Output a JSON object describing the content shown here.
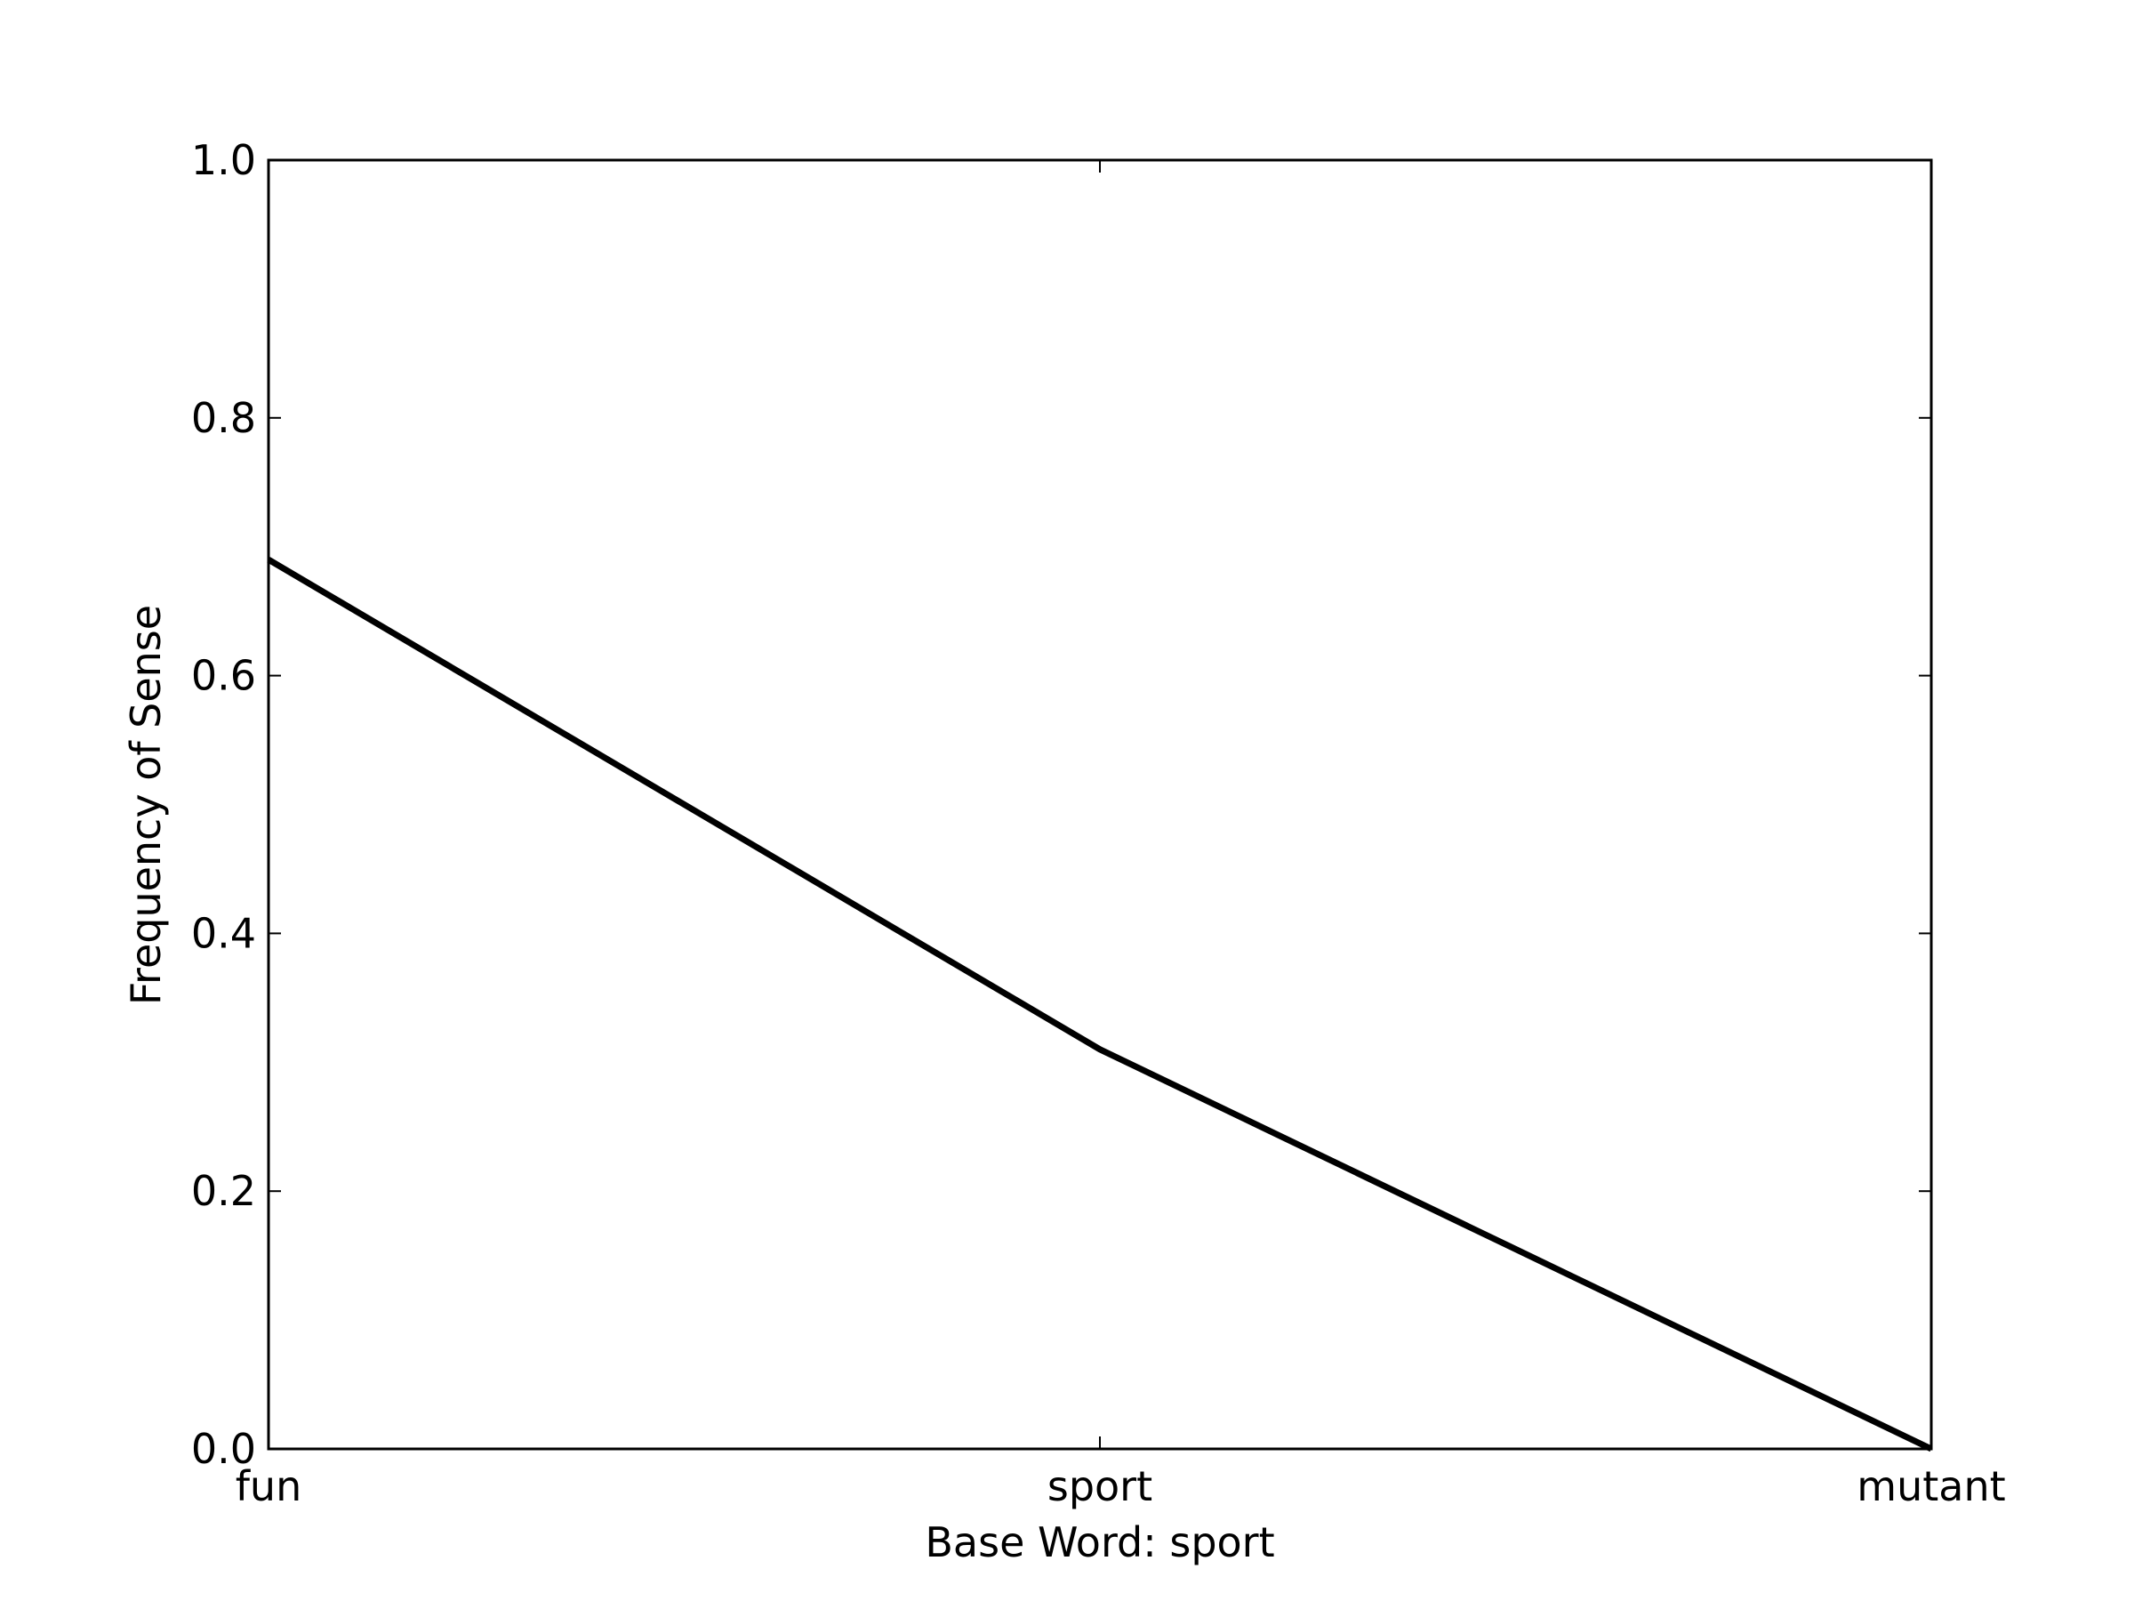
{
  "chart_data": {
    "type": "line",
    "categories": [
      "fun",
      "sport",
      "mutant"
    ],
    "series": [
      {
        "values": [
          0.69,
          0.31,
          0.0
        ]
      }
    ],
    "xlabel": "Base Word: sport",
    "ylabel": "Frequency of Sense",
    "ylim": [
      0.0,
      1.0
    ],
    "yticks": [
      "0.0",
      "0.2",
      "0.4",
      "0.6",
      "0.8",
      "1.0"
    ],
    "grid": false,
    "line_color": "#000000",
    "background": "#ffffff"
  }
}
